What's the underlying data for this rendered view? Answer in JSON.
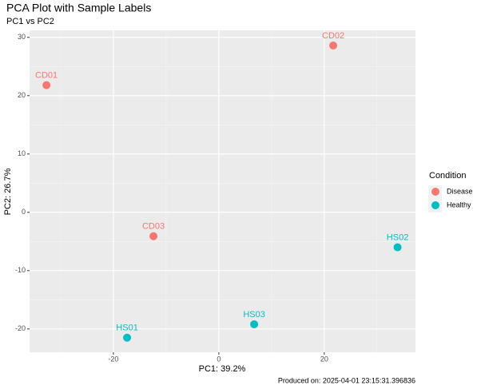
{
  "chart_data": {
    "type": "scatter",
    "title": "PCA Plot with Sample Labels",
    "subtitle": "PC1 vs PC2",
    "x_label": "PC1: 39.2%",
    "y_label": "PC2: 26.7%",
    "legend_title": "Condition",
    "legend_position": "right",
    "caption": "Produced on: 2025-04-01 23:15:31.396836",
    "xlim": [
      -35.9,
      37.3
    ],
    "ylim": [
      -24.0,
      31.2
    ],
    "xticks": [
      -20,
      0,
      20
    ],
    "yticks": [
      -20,
      -10,
      0,
      10,
      20,
      30
    ],
    "x_minor_ticks": [
      -30,
      -10,
      10,
      30
    ],
    "y_minor_ticks": [
      -15,
      -5,
      5,
      15,
      25
    ],
    "grid": true,
    "series": [
      {
        "name": "Disease",
        "color": "#F8766D",
        "labels": [
          "CD01",
          "CD02",
          "CD03"
        ],
        "x": [
          -32.7,
          21.7,
          -12.4
        ],
        "values": [
          21.8,
          28.6,
          -4.1
        ]
      },
      {
        "name": "Healthy",
        "color": "#00BFC4",
        "labels": [
          "HS01",
          "HS02",
          "HS03"
        ],
        "x": [
          -17.4,
          33.9,
          6.7
        ],
        "values": [
          -21.5,
          -6.0,
          -19.2
        ]
      }
    ]
  }
}
